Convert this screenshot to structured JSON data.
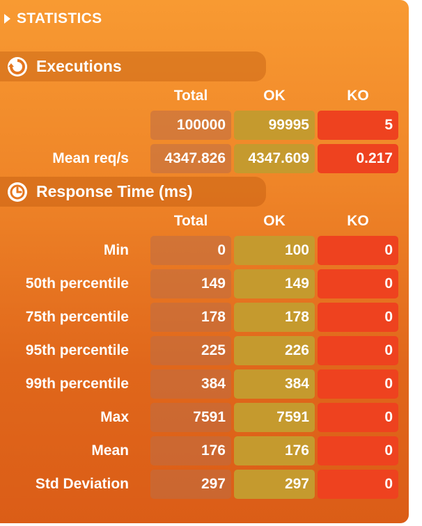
{
  "title": "STATISTICS",
  "executions": {
    "title": "Executions",
    "columns": [
      "Total",
      "OK",
      "KO"
    ],
    "rows": [
      {
        "label": "",
        "total": "100000",
        "ok": "99995",
        "ko": "5"
      },
      {
        "label": "Mean req/s",
        "total": "4347.826",
        "ok": "4347.609",
        "ko": "0.217"
      }
    ]
  },
  "response_time": {
    "title": "Response Time (ms)",
    "columns": [
      "Total",
      "OK",
      "KO"
    ],
    "rows": [
      {
        "label": "Min",
        "total": "0",
        "ok": "100",
        "ko": "0"
      },
      {
        "label": "50th percentile",
        "total": "149",
        "ok": "149",
        "ko": "0"
      },
      {
        "label": "75th percentile",
        "total": "178",
        "ok": "178",
        "ko": "0"
      },
      {
        "label": "95th percentile",
        "total": "225",
        "ok": "226",
        "ko": "0"
      },
      {
        "label": "99th percentile",
        "total": "384",
        "ok": "384",
        "ko": "0"
      },
      {
        "label": "Max",
        "total": "7591",
        "ok": "7591",
        "ko": "0"
      },
      {
        "label": "Mean",
        "total": "176",
        "ok": "176",
        "ko": "0"
      },
      {
        "label": "Std Deviation",
        "total": "297",
        "ok": "297",
        "ko": "0"
      }
    ]
  },
  "colors": {
    "panel_top": "#f89a32",
    "panel_bottom": "#db5d17",
    "ok": "#c59a2e",
    "ko": "#ee421f"
  },
  "icons": {
    "title": "play-triangle-icon",
    "executions": "refresh-icon",
    "response_time": "clock-icon"
  }
}
